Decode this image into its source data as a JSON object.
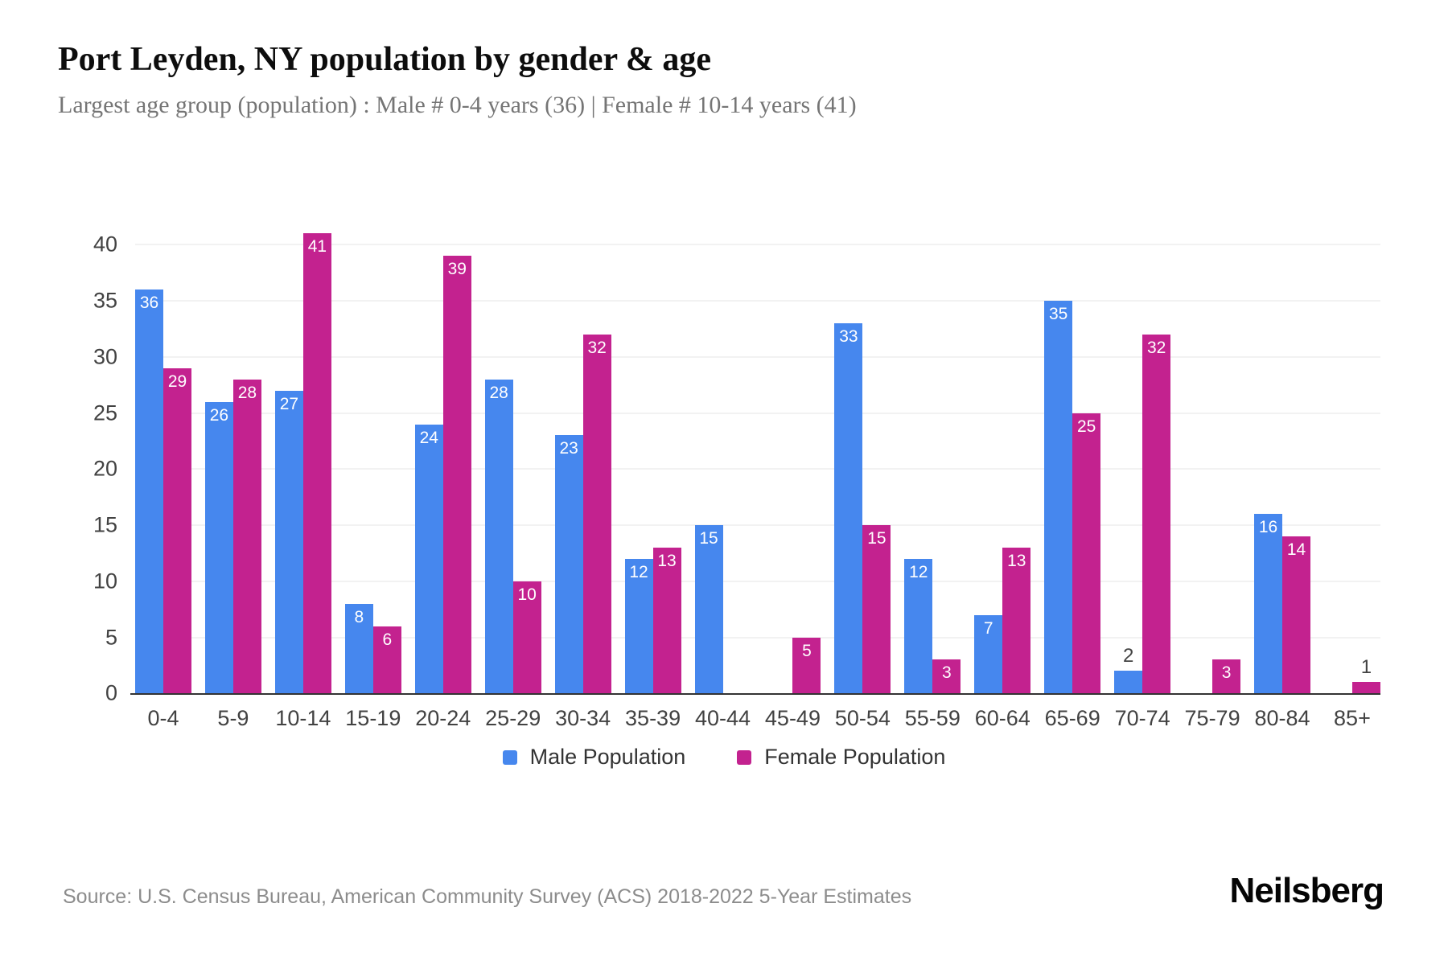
{
  "header": {
    "title": "Port Leyden, NY population by gender & age",
    "subtitle": "Largest age group (population) : Male # 0-4 years (36) | Female # 10-14 years (41)"
  },
  "chart_data": {
    "type": "bar",
    "title": "Port Leyden, NY population by gender & age",
    "categories": [
      "0-4",
      "5-9",
      "10-14",
      "15-19",
      "20-24",
      "25-29",
      "30-34",
      "35-39",
      "40-44",
      "45-49",
      "50-54",
      "55-59",
      "60-64",
      "65-69",
      "70-74",
      "75-79",
      "80-84",
      "85+"
    ],
    "series": [
      {
        "name": "Male Population",
        "color": "#4687ee",
        "values": [
          36,
          26,
          27,
          8,
          24,
          28,
          23,
          12,
          15,
          0,
          33,
          12,
          7,
          35,
          2,
          0,
          16,
          0
        ]
      },
      {
        "name": "Female Population",
        "color": "#c3228f",
        "values": [
          29,
          28,
          41,
          6,
          39,
          10,
          32,
          13,
          0,
          5,
          15,
          3,
          13,
          25,
          32,
          3,
          14,
          1
        ]
      }
    ],
    "xlabel": "",
    "ylabel": "",
    "ylim": [
      0,
      40
    ],
    "yticks": [
      0,
      5,
      10,
      15,
      20,
      25,
      30,
      35,
      40
    ],
    "grid": "horizontal-light",
    "legend_position": "bottom",
    "value_label_rule": "white inside bar top when value >= 3; dark above bar when 1-2; hidden when 0"
  },
  "colors": {
    "male": "#4687ee",
    "female": "#c3228f",
    "gridline": "#f2f2f2",
    "axis_line": "#333333",
    "tick_label": "#424242",
    "subtitle_gray": "#757575",
    "source_gray": "#8c8c8c"
  },
  "footer": {
    "source": "Source: U.S. Census Bureau, American Community Survey (ACS) 2018-2022 5-Year Estimates",
    "logo": "Neilsberg"
  }
}
